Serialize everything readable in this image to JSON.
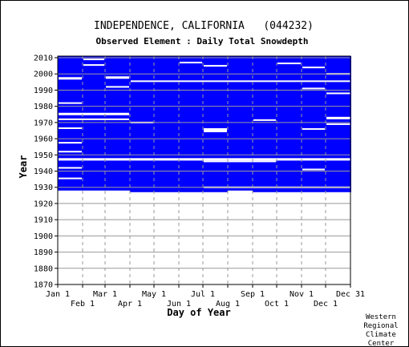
{
  "chart_data": {
    "type": "heatmap",
    "title": "INDEPENDENCE, CALIFORNIA   (044232)",
    "subtitle": "Observed Element : Daily Total Snowdepth",
    "xlabel": "Day of Year",
    "ylabel": "Year",
    "x_ticks_top_row": [
      "Jan 1",
      "Mar 1",
      "May 1",
      "Jul 1",
      "Sep 1",
      "Nov 1",
      "Dec 31"
    ],
    "x_ticks_bottom_row": [
      "Feb 1",
      "Apr 1",
      "Jun 1",
      "Aug 1",
      "Oct 1",
      "Dec 1"
    ],
    "y_ticks": [
      "2010",
      "2000",
      "1990",
      "1980",
      "1970",
      "1960",
      "1950",
      "1940",
      "1930",
      "1920",
      "1910",
      "1900",
      "1890",
      "1880",
      "1870"
    ],
    "xlim": [
      1,
      366
    ],
    "ylim": [
      1870,
      2011
    ],
    "grid": true,
    "colors": {
      "observed": "#0000ff",
      "missing": "#ffffff"
    },
    "record_start_by_month": [
      1928,
      1928,
      1928,
      1927,
      1927,
      1927,
      1927,
      1928,
      1927,
      1927,
      1927,
      1927
    ],
    "record_end_year": 2010,
    "missing_year_spans": [
      {
        "years": [
          1996.5,
          1997.5
        ],
        "months": [
          1,
          1
        ]
      },
      {
        "years": [
          1982,
          1982
        ],
        "months": [
          1,
          1
        ]
      },
      {
        "years": [
          1974.5,
          1975.5
        ],
        "months": [
          1,
          3
        ]
      },
      {
        "years": [
          1971.5,
          1972
        ],
        "months": [
          1,
          3
        ]
      },
      {
        "years": [
          1966,
          1966.5
        ],
        "months": [
          1,
          1
        ]
      },
      {
        "years": [
          1957,
          1957.5
        ],
        "months": [
          1,
          1
        ]
      },
      {
        "years": [
          1952,
          1952
        ],
        "months": [
          1,
          1
        ]
      },
      {
        "years": [
          1941.5,
          1942
        ],
        "months": [
          1,
          1
        ]
      },
      {
        "years": [
          1935,
          1935.5
        ],
        "months": [
          1,
          1
        ]
      },
      {
        "years": [
          2008.5,
          2009
        ],
        "months": [
          2,
          2
        ]
      },
      {
        "years": [
          2005,
          2005.5
        ],
        "months": [
          2,
          2
        ]
      },
      {
        "years": [
          1997,
          1998
        ],
        "months": [
          3,
          3
        ]
      },
      {
        "years": [
          1991.5,
          1992
        ],
        "months": [
          3,
          3
        ]
      },
      {
        "years": [
          1969.5,
          1970
        ],
        "months": [
          4,
          4
        ]
      },
      {
        "years": [
          1995,
          1995.5
        ],
        "months": [
          4,
          12
        ]
      },
      {
        "years": [
          2006.5,
          2007
        ],
        "months": [
          6,
          6
        ]
      },
      {
        "years": [
          2004.5,
          2005
        ],
        "months": [
          7,
          7
        ]
      },
      {
        "years": [
          1964,
          1966
        ],
        "months": [
          7,
          7
        ]
      },
      {
        "years": [
          1971,
          1971.5
        ],
        "months": [
          9,
          9
        ]
      },
      {
        "years": [
          2006,
          2006.5
        ],
        "months": [
          10,
          10
        ]
      },
      {
        "years": [
          2003.5,
          2004
        ],
        "months": [
          11,
          11
        ]
      },
      {
        "years": [
          1990.5,
          1991
        ],
        "months": [
          11,
          11
        ]
      },
      {
        "years": [
          1965.5,
          1966
        ],
        "months": [
          11,
          11
        ]
      },
      {
        "years": [
          1940.5,
          1941
        ],
        "months": [
          11,
          11
        ]
      },
      {
        "years": [
          1999.5,
          2000
        ],
        "months": [
          12,
          12
        ]
      },
      {
        "years": [
          1987.5,
          1988
        ],
        "months": [
          12,
          12
        ]
      },
      {
        "years": [
          1972,
          1973
        ],
        "months": [
          12,
          12
        ]
      },
      {
        "years": [
          1968.5,
          1969
        ],
        "months": [
          12,
          12
        ]
      },
      {
        "years": [
          1946.5,
          1947.5
        ],
        "months": [
          1,
          12
        ]
      },
      {
        "years": [
          1929.5,
          1930
        ],
        "months": [
          7,
          12
        ]
      },
      {
        "years": [
          1945.5,
          1946
        ],
        "months": [
          7,
          9
        ]
      }
    ]
  },
  "credit": [
    "Western",
    "Regional",
    "Climate",
    "Center"
  ]
}
